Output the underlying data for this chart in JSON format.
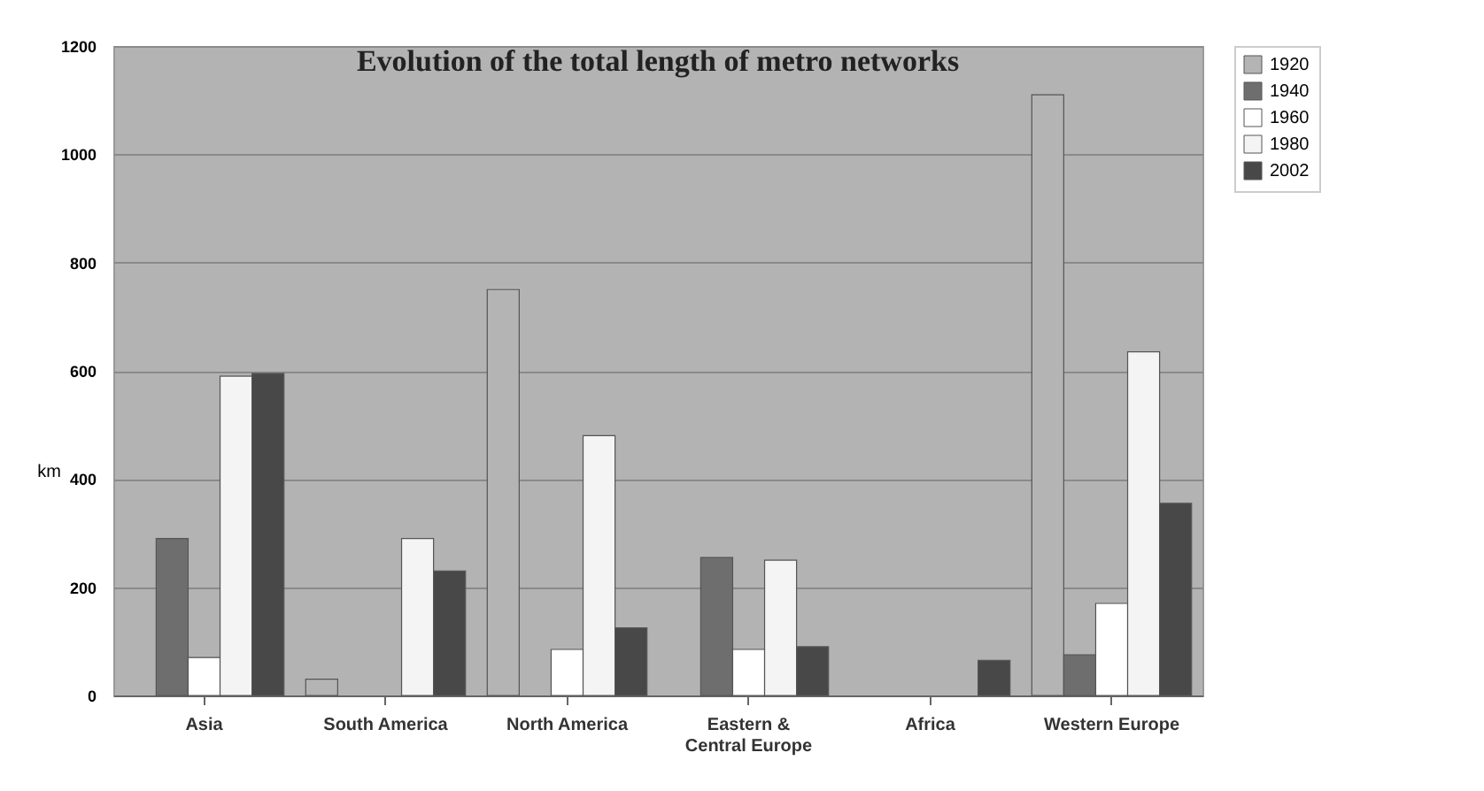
{
  "chart_data": {
    "type": "bar",
    "title": "Evolution of the total length of metro networks",
    "ylabel": "km",
    "categories": [
      "Asia",
      "South America",
      "North America",
      "Eastern & Central Europe",
      "Africa",
      "Western Europe"
    ],
    "series": [
      {
        "name": "1920",
        "color": "#b4b4b4",
        "values": [
          null,
          30,
          750,
          null,
          null,
          1110
        ]
      },
      {
        "name": "1940",
        "color": "#6e6e6e",
        "values": [
          290,
          null,
          null,
          255,
          null,
          75
        ]
      },
      {
        "name": "1960",
        "color": "#ffffff",
        "values": [
          70,
          null,
          85,
          85,
          null,
          170
        ]
      },
      {
        "name": "1980",
        "color": "#f4f4f4",
        "values": [
          590,
          290,
          480,
          250,
          null,
          635
        ]
      },
      {
        "name": "2002",
        "color": "#484848",
        "values": [
          595,
          230,
          125,
          90,
          65,
          355
        ]
      }
    ],
    "ylim": [
      0,
      1200
    ],
    "yticks": [
      0,
      200,
      400,
      600,
      800,
      1000,
      1200
    ],
    "grid": "y",
    "legend": "right"
  }
}
